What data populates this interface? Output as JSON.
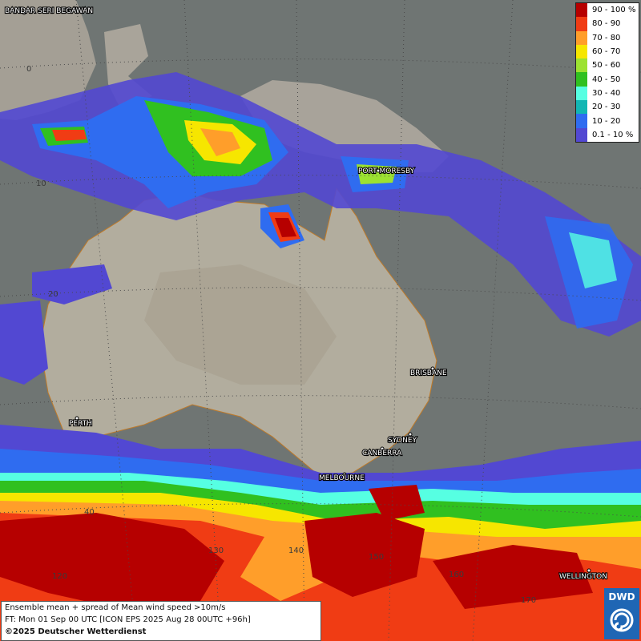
{
  "legend": {
    "items": [
      {
        "label": "90 - 100 %",
        "color": "#b60000"
      },
      {
        "label": "80 - 90",
        "color": "#f03c14"
      },
      {
        "label": "70 - 80",
        "color": "#ff9e2a"
      },
      {
        "label": "60 - 70",
        "color": "#f6e600"
      },
      {
        "label": "50 - 60",
        "color": "#9ce231"
      },
      {
        "label": "40 - 50",
        "color": "#30c020"
      },
      {
        "label": "30 - 40",
        "color": "#56ffe2"
      },
      {
        "label": "20 - 30",
        "color": "#12b6b3"
      },
      {
        "label": "10 - 20",
        "color": "#2f6cf0"
      },
      {
        "label": "0.1 - 10 %",
        "color": "#5248d2"
      }
    ]
  },
  "cities": {
    "bandar": "BANDAR SERI BEGAWAN",
    "port_moresby": "PORT MORESBY",
    "brisbane": "BRISBANE",
    "perth": "PERTH",
    "sydney": "SYDNEY",
    "canberra": "CANBERRA",
    "melbourne": "MELBOURNE",
    "wellington": "WELLINGTON"
  },
  "grid_labels": {
    "lat0": "0",
    "lat10": "10",
    "lat20": "20",
    "lat40": "40",
    "lon130": "130",
    "lon140": "140",
    "lon120": "120",
    "lon150": "150",
    "lon160": "160",
    "lon170": "170"
  },
  "info": {
    "line1": "Ensemble mean + spread of Mean wind speed >10m/s",
    "line2": "FT: Mon 01 Sep 00 UTC [ICON EPS 2025 Aug 28 00UTC +96h]",
    "copyright": "©2025 Deutscher Wetterdienst"
  },
  "logo": {
    "text": "DWD",
    "icon": "dwd-swirl-icon"
  }
}
